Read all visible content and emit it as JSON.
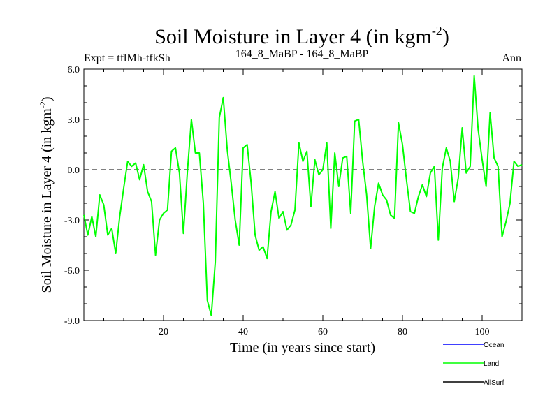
{
  "chart_data": {
    "type": "line",
    "title": "Soil Moisture in Layer 4 (in kgm",
    "title_sup": "-2",
    "title_close": ")",
    "subtitle_left": "Expt = tflMh-tfkSh",
    "subtitle_center": "164_8_MaBP - 164_8_MaBP",
    "subtitle_right": "Ann",
    "xlabel": "Time (in years since start)",
    "ylabel": "Soil Moisture in Layer 4 (in kgm",
    "ylabel_sup": "-2",
    "ylabel_close": ")",
    "xlim": [
      0,
      110
    ],
    "ylim": [
      -9,
      6
    ],
    "x_ticks": [
      20,
      40,
      60,
      80,
      100
    ],
    "x_tick_labels": [
      "20",
      "40",
      "60",
      "80",
      "100"
    ],
    "y_ticks": [
      -9,
      -6,
      -3,
      0,
      3,
      6
    ],
    "y_tick_labels": [
      "-9.0",
      "-6.0",
      "-3.0",
      "0.0",
      "3.0",
      "6.0"
    ],
    "reference_line": 0,
    "legend": [
      {
        "name": "Ocean",
        "color": "#0000ff"
      },
      {
        "name": "Land",
        "color": "#00ff00"
      },
      {
        "name": "AllSurf",
        "color": "#000000"
      }
    ],
    "series": [
      {
        "name": "Land",
        "color": "#00ff00",
        "x": [
          0,
          1,
          2,
          3,
          4,
          5,
          6,
          7,
          8,
          9,
          10,
          11,
          12,
          13,
          14,
          15,
          16,
          17,
          18,
          19,
          20,
          21,
          22,
          23,
          24,
          25,
          26,
          27,
          28,
          29,
          30,
          31,
          32,
          33,
          34,
          35,
          36,
          37,
          38,
          39,
          40,
          41,
          42,
          43,
          44,
          45,
          46,
          47,
          48,
          49,
          50,
          51,
          52,
          53,
          54,
          55,
          56,
          57,
          58,
          59,
          60,
          61,
          62,
          63,
          64,
          65,
          66,
          67,
          68,
          69,
          70,
          71,
          72,
          73,
          74,
          75,
          76,
          77,
          78,
          79,
          80,
          81,
          82,
          83,
          84,
          85,
          86,
          87,
          88,
          89,
          90,
          91,
          92,
          93,
          94,
          95,
          96,
          97,
          98,
          99,
          100,
          101,
          102,
          103,
          104,
          105,
          106,
          107,
          108,
          109,
          110
        ],
        "values": [
          -2.7,
          -3.9,
          -2.8,
          -4.0,
          -1.5,
          -2.1,
          -3.9,
          -3.5,
          -5.0,
          -2.8,
          -1.1,
          0.5,
          0.2,
          0.4,
          -0.6,
          0.3,
          -1.3,
          -1.9,
          -5.1,
          -3.0,
          -2.6,
          -2.4,
          1.1,
          1.3,
          -0.2,
          -3.8,
          -0.1,
          3.0,
          1.0,
          1.0,
          -2.0,
          -7.8,
          -8.7,
          -5.5,
          3.1,
          4.3,
          1.2,
          -0.8,
          -3.0,
          -4.5,
          1.3,
          1.5,
          -0.8,
          -3.9,
          -4.8,
          -4.6,
          -5.3,
          -2.5,
          -1.3,
          -2.9,
          -2.5,
          -3.6,
          -3.3,
          -2.4,
          1.6,
          0.5,
          1.1,
          -2.2,
          0.6,
          -0.3,
          0.0,
          1.6,
          -3.5,
          1.0,
          -1.0,
          0.7,
          0.8,
          -2.6,
          2.9,
          3.0,
          0.5,
          -1.5,
          -4.7,
          -2.2,
          -0.8,
          -1.5,
          -1.8,
          -2.7,
          -2.9,
          2.8,
          1.5,
          -0.6,
          -2.5,
          -2.6,
          -1.6,
          -0.9,
          -1.6,
          -0.2,
          0.2,
          -4.2,
          0.1,
          1.3,
          0.5,
          -1.9,
          -0.5,
          2.5,
          -0.2,
          0.2,
          5.6,
          2.4,
          0.6,
          -1.0,
          3.4,
          0.7,
          0.2,
          -4.0,
          -3.1,
          -2.0,
          0.5,
          0.2,
          0.3
        ]
      }
    ]
  }
}
